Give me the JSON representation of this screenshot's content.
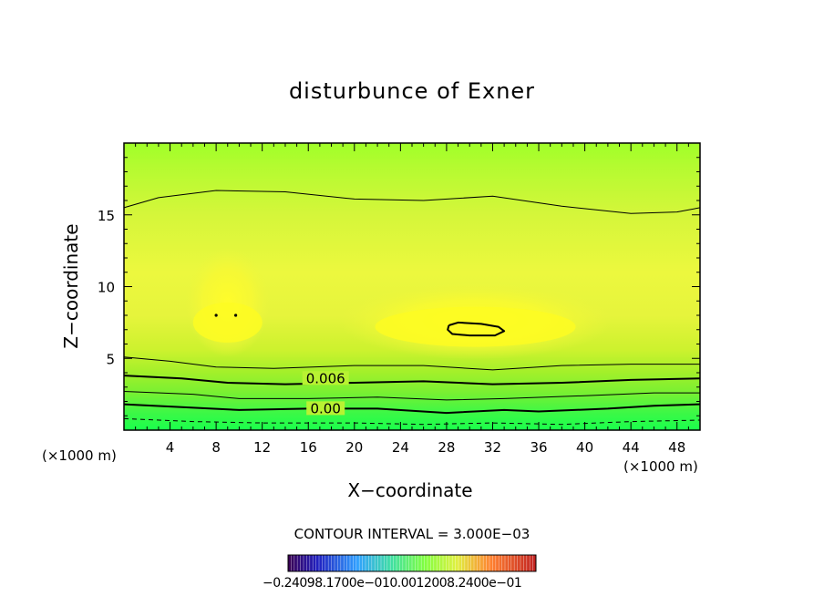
{
  "chart_data": {
    "type": "contour",
    "title": "disturbunce of Exner",
    "xlabel": "X−coordinate",
    "ylabel": "Z−coordinate",
    "x_unit_left": "(×1000 m)",
    "x_unit_right": "(×1000 m)",
    "xlim": [
      0,
      50
    ],
    "ylim": [
      0,
      20
    ],
    "x_ticks": [
      4,
      8,
      12,
      16,
      20,
      24,
      28,
      32,
      36,
      40,
      44,
      48
    ],
    "y_ticks": [
      5,
      10,
      15
    ],
    "contour_interval_text": "CONTOUR INTERVAL = 3.000E−03",
    "contour_labels": [
      {
        "text": "0.006",
        "x": 17.5,
        "z": 3.6
      },
      {
        "text": "0.00",
        "x": 17.5,
        "z": 1.5
      }
    ],
    "contours": [
      {
        "style": "thin",
        "points": [
          [
            0,
            15.5
          ],
          [
            3,
            16.2
          ],
          [
            8,
            16.7
          ],
          [
            14,
            16.6
          ],
          [
            20,
            16.1
          ],
          [
            26,
            16.0
          ],
          [
            32,
            16.3
          ],
          [
            38,
            15.6
          ],
          [
            44,
            15.1
          ],
          [
            48,
            15.2
          ],
          [
            50,
            15.5
          ]
        ]
      },
      {
        "style": "thin",
        "points": [
          [
            0,
            5.1
          ],
          [
            4,
            4.8
          ],
          [
            8,
            4.4
          ],
          [
            13,
            4.3
          ],
          [
            20,
            4.5
          ],
          [
            26,
            4.5
          ],
          [
            32,
            4.2
          ],
          [
            38,
            4.5
          ],
          [
            44,
            4.6
          ],
          [
            50,
            4.6
          ]
        ]
      },
      {
        "style": "thick",
        "points": [
          [
            0,
            3.8
          ],
          [
            5,
            3.6
          ],
          [
            9,
            3.3
          ],
          [
            14,
            3.2
          ],
          [
            20,
            3.3
          ],
          [
            26,
            3.4
          ],
          [
            32,
            3.2
          ],
          [
            38,
            3.3
          ],
          [
            44,
            3.5
          ],
          [
            50,
            3.6
          ]
        ]
      },
      {
        "style": "thin",
        "points": [
          [
            0,
            2.7
          ],
          [
            6,
            2.5
          ],
          [
            10,
            2.2
          ],
          [
            16,
            2.2
          ],
          [
            22,
            2.3
          ],
          [
            28,
            2.1
          ],
          [
            33,
            2.2
          ],
          [
            40,
            2.4
          ],
          [
            46,
            2.6
          ],
          [
            50,
            2.6
          ]
        ]
      },
      {
        "style": "thick",
        "points": [
          [
            0,
            1.8
          ],
          [
            5,
            1.6
          ],
          [
            10,
            1.4
          ],
          [
            16,
            1.5
          ],
          [
            22,
            1.5
          ],
          [
            28,
            1.2
          ],
          [
            33,
            1.4
          ],
          [
            36,
            1.3
          ],
          [
            42,
            1.5
          ],
          [
            46,
            1.7
          ],
          [
            50,
            1.8
          ]
        ]
      },
      {
        "style": "dashed",
        "points": [
          [
            0,
            0.8
          ],
          [
            6,
            0.6
          ],
          [
            12,
            0.5
          ],
          [
            20,
            0.5
          ],
          [
            26,
            0.4
          ],
          [
            32,
            0.5
          ],
          [
            38,
            0.4
          ],
          [
            44,
            0.6
          ],
          [
            50,
            0.7
          ]
        ]
      },
      {
        "style": "thick-closed",
        "points": [
          [
            28.2,
            7.3
          ],
          [
            29,
            7.5
          ],
          [
            31,
            7.4
          ],
          [
            32.5,
            7.2
          ],
          [
            33,
            6.9
          ],
          [
            32.2,
            6.6
          ],
          [
            30,
            6.6
          ],
          [
            28.5,
            6.7
          ],
          [
            28.1,
            7.0
          ],
          [
            28.2,
            7.3
          ]
        ]
      }
    ],
    "dots": [
      [
        8.0,
        8.0
      ],
      [
        9.7,
        8.0
      ]
    ],
    "colorbar": {
      "labels_text": "−0.24098.1700e−010.0012008.2400e−01",
      "min": -0.24,
      "max": 0.24
    },
    "colors": {
      "top": "#a2ff2a",
      "upper": "#bff533",
      "mid": "#e8f53c",
      "core": "#fdfd2b",
      "lower": "#c8f52a",
      "bottom": "#24ff48"
    }
  }
}
